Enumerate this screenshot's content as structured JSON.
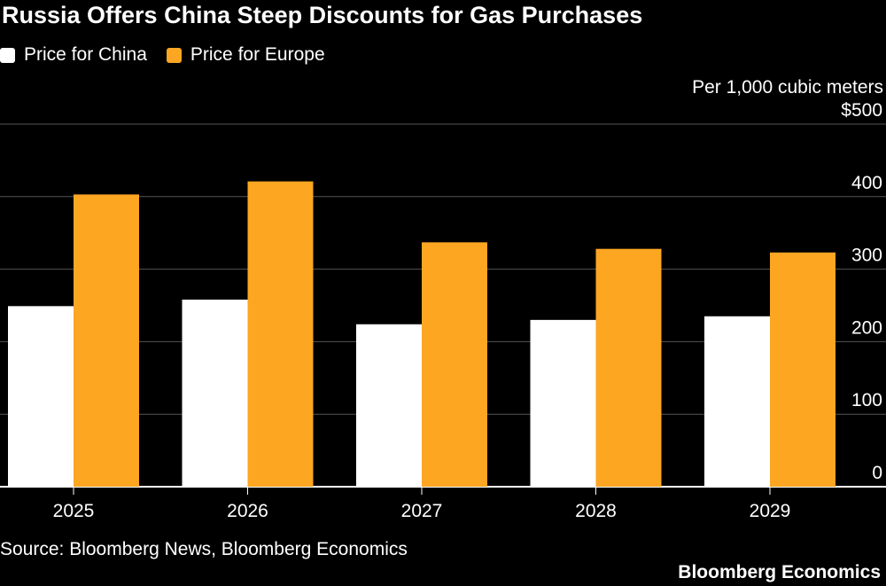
{
  "title": "Russia Offers China Steep Discounts for Gas Purchases",
  "unit_label": "Per 1,000 cubic meters",
  "source": "Source: Bloomberg News, Bloomberg Economics",
  "brand": "Bloomberg Economics",
  "colors": {
    "background": "#000000",
    "china": "#ffffff",
    "europe": "#fca622",
    "grid": "#555555"
  },
  "chart_data": {
    "type": "bar",
    "categories": [
      "2025",
      "2026",
      "2027",
      "2028",
      "2029"
    ],
    "series": [
      {
        "name": "Price for China",
        "color": "#ffffff",
        "values": [
          249,
          258,
          224,
          230,
          235
        ]
      },
      {
        "name": "Price for Europe",
        "color": "#fca622",
        "values": [
          403,
          421,
          337,
          328,
          323
        ]
      }
    ],
    "ylim": [
      0,
      500
    ],
    "yticks": [
      0,
      100,
      200,
      300,
      400,
      500
    ],
    "ytick_labels": [
      "0",
      "100",
      "200",
      "300",
      "400",
      "$500"
    ],
    "ylabel": "Per 1,000 cubic meters",
    "xlabel": "",
    "grid": true,
    "legend_position": "top-left"
  }
}
